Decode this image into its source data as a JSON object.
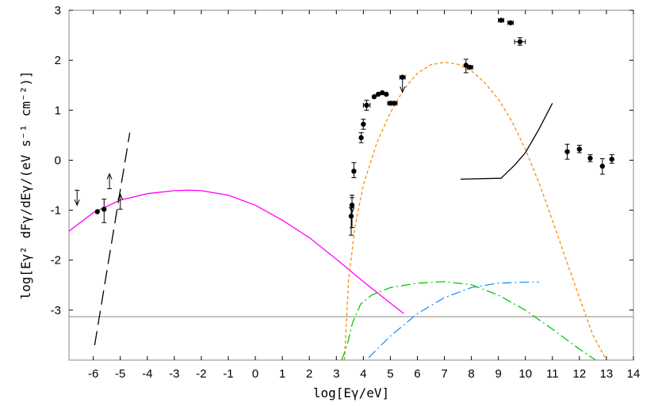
{
  "chart_data": {
    "type": "scatter",
    "xlabel": "log[Eγ/eV]",
    "ylabel": "log[Eγ² dFγ/dEγ/(eV s⁻¹ cm⁻²)]",
    "xlim": [
      -6.9,
      14.0
    ],
    "ylim": [
      -4.0,
      3.0
    ],
    "x_ticks": [
      "-6",
      "-5",
      "-4",
      "-3",
      "-2",
      "-1",
      "0",
      "1",
      "2",
      "3",
      "4",
      "5",
      "6",
      "7",
      "8",
      "9",
      "10",
      "11",
      "12",
      "13",
      "14"
    ],
    "y_ticks": [
      "3",
      "2",
      "1",
      "0",
      "-1",
      "-2",
      "-3"
    ],
    "reference_line_y": -3.13,
    "points": [
      {
        "x": -5.85,
        "y": -1.03
      },
      {
        "x": -5.6,
        "y": -0.98,
        "ylo": -1.25,
        "yhi": -0.78
      },
      {
        "x": 3.55,
        "y": -1.12,
        "ylo": -1.5,
        "yhi": -0.95
      },
      {
        "x": 3.58,
        "y": -0.9,
        "ylo": -1.35,
        "yhi": -0.7
      },
      {
        "x": 3.65,
        "y": -0.22,
        "ylo": -0.35,
        "yhi": -0.05
      },
      {
        "x": 3.92,
        "y": 0.45,
        "ylo": 0.35,
        "yhi": 0.55
      },
      {
        "x": 4.0,
        "y": 0.72,
        "ylo": 0.62,
        "yhi": 0.82
      },
      {
        "x": 4.12,
        "y": 1.1,
        "xlo": 4.0,
        "xhi": 4.25,
        "ylo": 1.0,
        "yhi": 1.2
      },
      {
        "x": 4.4,
        "y": 1.27
      },
      {
        "x": 4.55,
        "y": 1.32
      },
      {
        "x": 4.7,
        "y": 1.35
      },
      {
        "x": 4.85,
        "y": 1.32
      },
      {
        "x": 5.0,
        "y": 1.14,
        "xlo": 4.9,
        "xhi": 5.1
      },
      {
        "x": 5.15,
        "y": 1.14,
        "xlo": 5.05,
        "xhi": 5.25
      },
      {
        "x": 5.45,
        "y": 1.66,
        "xlo": 5.35,
        "xhi": 5.55
      },
      {
        "x": 7.8,
        "y": 1.9,
        "ylo": 1.75,
        "yhi": 2.02
      },
      {
        "x": 7.95,
        "y": 1.86,
        "xlo": 7.85,
        "xhi": 8.05
      },
      {
        "x": 9.1,
        "y": 2.8,
        "xlo": 9.0,
        "xhi": 9.2
      },
      {
        "x": 9.45,
        "y": 2.75,
        "xlo": 9.35,
        "xhi": 9.55
      },
      {
        "x": 9.8,
        "y": 2.37,
        "xlo": 9.6,
        "xhi": 10.0,
        "ylo": 2.3,
        "yhi": 2.45
      },
      {
        "x": 11.55,
        "y": 0.17,
        "ylo": 0.02,
        "yhi": 0.32
      },
      {
        "x": 12.0,
        "y": 0.22,
        "ylo": 0.15,
        "yhi": 0.3
      },
      {
        "x": 12.4,
        "y": 0.04,
        "ylo": -0.03,
        "yhi": 0.11
      },
      {
        "x": 12.85,
        "y": -0.12,
        "ylo": -0.28,
        "yhi": 0.03
      },
      {
        "x": 13.2,
        "y": 0.02,
        "ylo": -0.06,
        "yhi": 0.11
      }
    ],
    "upper_limits": [
      {
        "x": -6.6,
        "y": -0.6
      },
      {
        "x": 3.58,
        "y": -0.75
      },
      {
        "x": 5.45,
        "y": 1.66
      }
    ],
    "lower_limits": [
      {
        "x": -5.4,
        "y": -0.57
      },
      {
        "x": -5.0,
        "y": -0.98
      }
    ],
    "series": [
      {
        "color": "#ff00ff",
        "style": "solid",
        "x": [
          -6.9,
          -6.0,
          -5.0,
          -4.0,
          -3.0,
          -2.5,
          -2.0,
          -1.0,
          0.0,
          1.0,
          2.0,
          3.0,
          4.0,
          5.0,
          5.5
        ],
        "y": [
          -1.42,
          -1.05,
          -0.8,
          -0.67,
          -0.61,
          -0.6,
          -0.61,
          -0.7,
          -0.9,
          -1.2,
          -1.55,
          -1.98,
          -2.43,
          -2.86,
          -3.07
        ]
      },
      {
        "color": "#000000",
        "style": "longdash",
        "x": [
          -5.95,
          -4.65
        ],
        "y": [
          -3.7,
          0.55
        ]
      },
      {
        "color": "#ff8c00",
        "style": "dash",
        "x": [
          3.3,
          3.45,
          3.7,
          4.0,
          4.5,
          5.0,
          5.5,
          6.0,
          6.5,
          7.0,
          7.5,
          8.0,
          8.5,
          9.0,
          9.5,
          10.0,
          10.5,
          11.0,
          11.5,
          12.0,
          12.5,
          13.0
        ],
        "y": [
          -4.0,
          -2.4,
          -1.3,
          -0.5,
          0.35,
          0.95,
          1.42,
          1.74,
          1.91,
          1.96,
          1.92,
          1.79,
          1.55,
          1.22,
          0.78,
          0.22,
          -0.45,
          -1.2,
          -1.98,
          -2.75,
          -3.5,
          -4.0
        ]
      },
      {
        "color": "#00cc00",
        "style": "dashdot",
        "x": [
          3.2,
          3.4,
          3.6,
          3.9,
          4.3,
          5.0,
          6.0,
          7.0,
          8.0,
          9.0,
          10.0,
          11.0,
          12.0,
          12.6
        ],
        "y": [
          -4.0,
          -3.7,
          -3.25,
          -2.88,
          -2.7,
          -2.55,
          -2.46,
          -2.43,
          -2.49,
          -2.7,
          -3.0,
          -3.38,
          -3.78,
          -4.0
        ]
      },
      {
        "color": "#1e90ff",
        "style": "dashdot",
        "x": [
          4.2,
          5.0,
          6.0,
          7.0,
          8.0,
          9.0,
          10.0,
          10.5
        ],
        "y": [
          -3.95,
          -3.52,
          -3.07,
          -2.75,
          -2.55,
          -2.46,
          -2.44,
          -2.44
        ]
      },
      {
        "color": "#000000",
        "style": "solid",
        "x": [
          7.6,
          9.1,
          9.6,
          10.0,
          10.5,
          11.0
        ],
        "y": [
          -0.38,
          -0.36,
          -0.1,
          0.15,
          0.62,
          1.14
        ]
      }
    ]
  }
}
